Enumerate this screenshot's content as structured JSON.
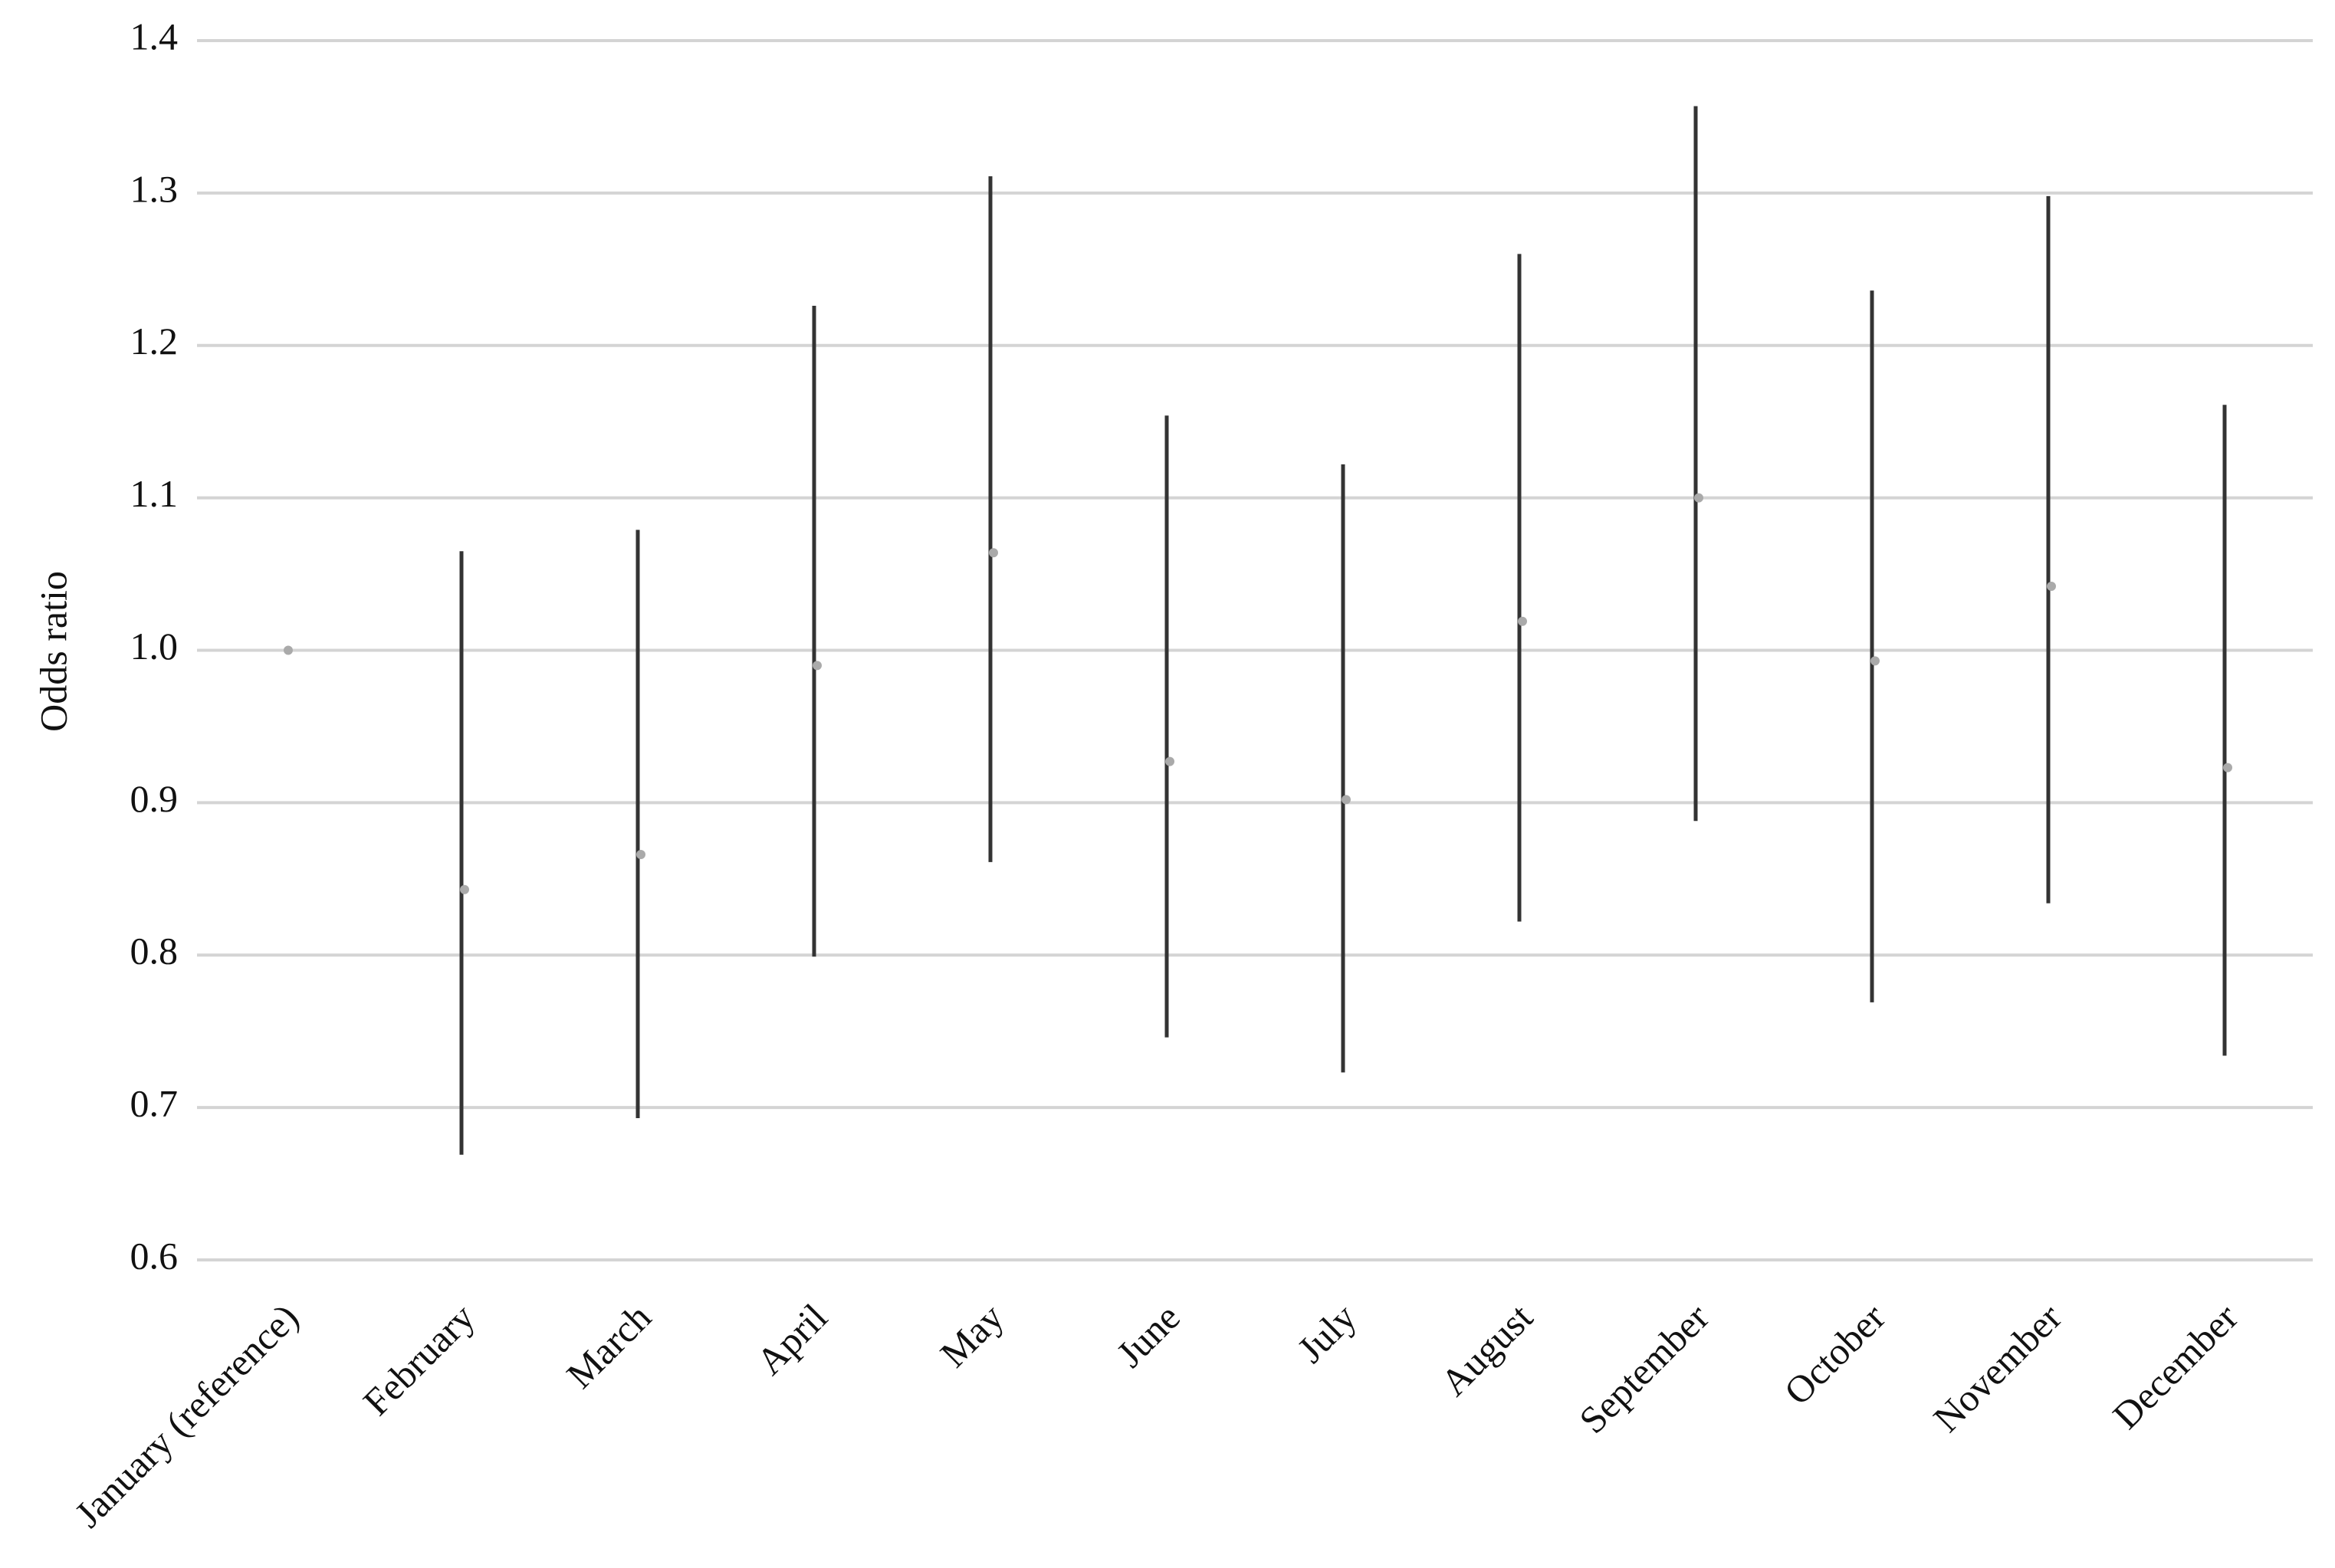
{
  "chart_data": {
    "type": "errorbar",
    "y_label": "Odds ratio",
    "categories": [
      "January (reference)",
      "February",
      "March",
      "April",
      "May",
      "June",
      "July",
      "August",
      "September",
      "October",
      "November",
      "December"
    ],
    "values": [
      1.0,
      0.843,
      0.866,
      0.99,
      1.064,
      0.927,
      0.902,
      1.019,
      1.1,
      0.993,
      1.042,
      0.923
    ],
    "lower": [
      null,
      0.669,
      0.693,
      0.799,
      0.861,
      0.746,
      0.723,
      0.822,
      0.888,
      0.769,
      0.834,
      0.734
    ],
    "upper": [
      null,
      1.065,
      1.079,
      1.226,
      1.311,
      1.154,
      1.122,
      1.26,
      1.357,
      1.236,
      1.298,
      1.161
    ],
    "point_color": "#aaaaaa",
    "bar_color": "#333333",
    "ylim": [
      0.6,
      1.4
    ],
    "yticks": [
      0.6,
      0.7,
      0.8,
      0.9,
      {
        "value": 1,
        "label": "1.0"
      },
      1.1,
      1.2,
      1.3,
      1.4
    ],
    "grid": true
  }
}
